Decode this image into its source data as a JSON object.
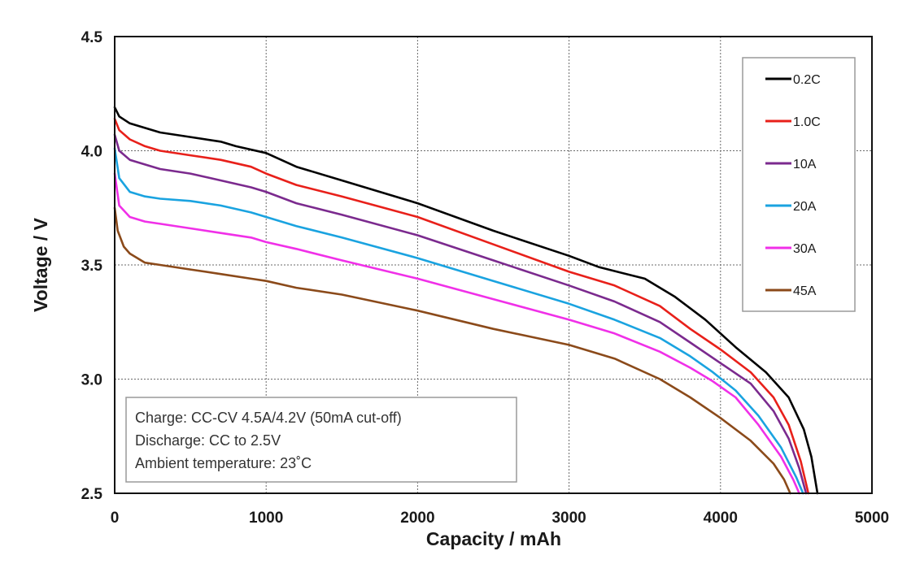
{
  "chart_data": {
    "type": "line",
    "title": "",
    "xlabel": "Capacity / mAh",
    "ylabel": "Voltage / V",
    "xlim": [
      0,
      5000
    ],
    "ylim": [
      2.5,
      4.5
    ],
    "xticks": [
      0,
      1000,
      2000,
      3000,
      4000,
      5000
    ],
    "yticks": [
      2.5,
      3.0,
      3.5,
      4.0,
      4.5
    ],
    "xtick_labels": [
      "0",
      "1000",
      "2000",
      "3000",
      "4000",
      "5000"
    ],
    "ytick_labels": [
      "2.5",
      "3.0",
      "3.5",
      "4.0",
      "4.5"
    ],
    "grid": true,
    "legend_position": "top-right",
    "annotation": [
      "Charge: CC-CV 4.5A/4.2V (50mA cut-off)",
      "Discharge: CC to 2.5V",
      "Ambient temperature: 23˚C"
    ],
    "series": [
      {
        "name": "0.2C",
        "color": "#000000",
        "points": [
          [
            0,
            4.19
          ],
          [
            30,
            4.15
          ],
          [
            100,
            4.12
          ],
          [
            200,
            4.1
          ],
          [
            300,
            4.08
          ],
          [
            500,
            4.06
          ],
          [
            700,
            4.04
          ],
          [
            800,
            4.02
          ],
          [
            1000,
            3.99
          ],
          [
            1200,
            3.93
          ],
          [
            1500,
            3.87
          ],
          [
            2000,
            3.77
          ],
          [
            2500,
            3.65
          ],
          [
            3000,
            3.54
          ],
          [
            3200,
            3.49
          ],
          [
            3500,
            3.44
          ],
          [
            3700,
            3.36
          ],
          [
            3900,
            3.26
          ],
          [
            4100,
            3.14
          ],
          [
            4300,
            3.03
          ],
          [
            4450,
            2.92
          ],
          [
            4550,
            2.78
          ],
          [
            4600,
            2.66
          ],
          [
            4640,
            2.5
          ]
        ]
      },
      {
        "name": "1.0C",
        "color": "#e8201a",
        "points": [
          [
            0,
            4.14
          ],
          [
            30,
            4.09
          ],
          [
            100,
            4.05
          ],
          [
            200,
            4.02
          ],
          [
            300,
            4.0
          ],
          [
            500,
            3.98
          ],
          [
            700,
            3.96
          ],
          [
            900,
            3.93
          ],
          [
            1000,
            3.9
          ],
          [
            1200,
            3.85
          ],
          [
            1500,
            3.8
          ],
          [
            2000,
            3.71
          ],
          [
            2500,
            3.59
          ],
          [
            3000,
            3.47
          ],
          [
            3300,
            3.41
          ],
          [
            3600,
            3.32
          ],
          [
            3800,
            3.22
          ],
          [
            4000,
            3.13
          ],
          [
            4200,
            3.03
          ],
          [
            4350,
            2.92
          ],
          [
            4450,
            2.8
          ],
          [
            4530,
            2.64
          ],
          [
            4580,
            2.5
          ]
        ]
      },
      {
        "name": "10A",
        "color": "#7b2a8e",
        "points": [
          [
            0,
            4.07
          ],
          [
            30,
            4.0
          ],
          [
            100,
            3.96
          ],
          [
            200,
            3.94
          ],
          [
            300,
            3.92
          ],
          [
            500,
            3.9
          ],
          [
            700,
            3.87
          ],
          [
            900,
            3.84
          ],
          [
            1000,
            3.82
          ],
          [
            1200,
            3.77
          ],
          [
            1500,
            3.72
          ],
          [
            2000,
            3.63
          ],
          [
            2500,
            3.52
          ],
          [
            3000,
            3.41
          ],
          [
            3300,
            3.34
          ],
          [
            3600,
            3.25
          ],
          [
            3800,
            3.16
          ],
          [
            4000,
            3.07
          ],
          [
            4200,
            2.98
          ],
          [
            4350,
            2.86
          ],
          [
            4450,
            2.74
          ],
          [
            4520,
            2.61
          ],
          [
            4565,
            2.5
          ]
        ]
      },
      {
        "name": "20A",
        "color": "#1aa3e0",
        "points": [
          [
            0,
            4.01
          ],
          [
            30,
            3.88
          ],
          [
            100,
            3.82
          ],
          [
            200,
            3.8
          ],
          [
            300,
            3.79
          ],
          [
            500,
            3.78
          ],
          [
            700,
            3.76
          ],
          [
            900,
            3.73
          ],
          [
            1000,
            3.71
          ],
          [
            1200,
            3.67
          ],
          [
            1500,
            3.62
          ],
          [
            2000,
            3.53
          ],
          [
            2500,
            3.43
          ],
          [
            3000,
            3.33
          ],
          [
            3300,
            3.26
          ],
          [
            3600,
            3.18
          ],
          [
            3800,
            3.1
          ],
          [
            3950,
            3.03
          ],
          [
            4100,
            2.95
          ],
          [
            4250,
            2.84
          ],
          [
            4400,
            2.7
          ],
          [
            4500,
            2.57
          ],
          [
            4545,
            2.5
          ]
        ]
      },
      {
        "name": "30A",
        "color": "#f030e8",
        "points": [
          [
            0,
            3.9
          ],
          [
            30,
            3.76
          ],
          [
            100,
            3.71
          ],
          [
            200,
            3.69
          ],
          [
            300,
            3.68
          ],
          [
            500,
            3.66
          ],
          [
            700,
            3.64
          ],
          [
            900,
            3.62
          ],
          [
            1000,
            3.6
          ],
          [
            1200,
            3.57
          ],
          [
            1500,
            3.52
          ],
          [
            2000,
            3.44
          ],
          [
            2500,
            3.35
          ],
          [
            3000,
            3.26
          ],
          [
            3300,
            3.2
          ],
          [
            3600,
            3.12
          ],
          [
            3800,
            3.05
          ],
          [
            3950,
            2.99
          ],
          [
            4100,
            2.92
          ],
          [
            4250,
            2.8
          ],
          [
            4400,
            2.66
          ],
          [
            4480,
            2.56
          ],
          [
            4520,
            2.5
          ]
        ]
      },
      {
        "name": "45A",
        "color": "#8b4a1a",
        "points": [
          [
            0,
            3.75
          ],
          [
            20,
            3.65
          ],
          [
            60,
            3.58
          ],
          [
            100,
            3.55
          ],
          [
            200,
            3.51
          ],
          [
            300,
            3.5
          ],
          [
            500,
            3.48
          ],
          [
            700,
            3.46
          ],
          [
            900,
            3.44
          ],
          [
            1000,
            3.43
          ],
          [
            1200,
            3.4
          ],
          [
            1500,
            3.37
          ],
          [
            2000,
            3.3
          ],
          [
            2500,
            3.22
          ],
          [
            3000,
            3.15
          ],
          [
            3300,
            3.09
          ],
          [
            3600,
            3.0
          ],
          [
            3800,
            2.92
          ],
          [
            4000,
            2.83
          ],
          [
            4200,
            2.73
          ],
          [
            4350,
            2.63
          ],
          [
            4420,
            2.56
          ],
          [
            4460,
            2.5
          ]
        ]
      }
    ]
  }
}
